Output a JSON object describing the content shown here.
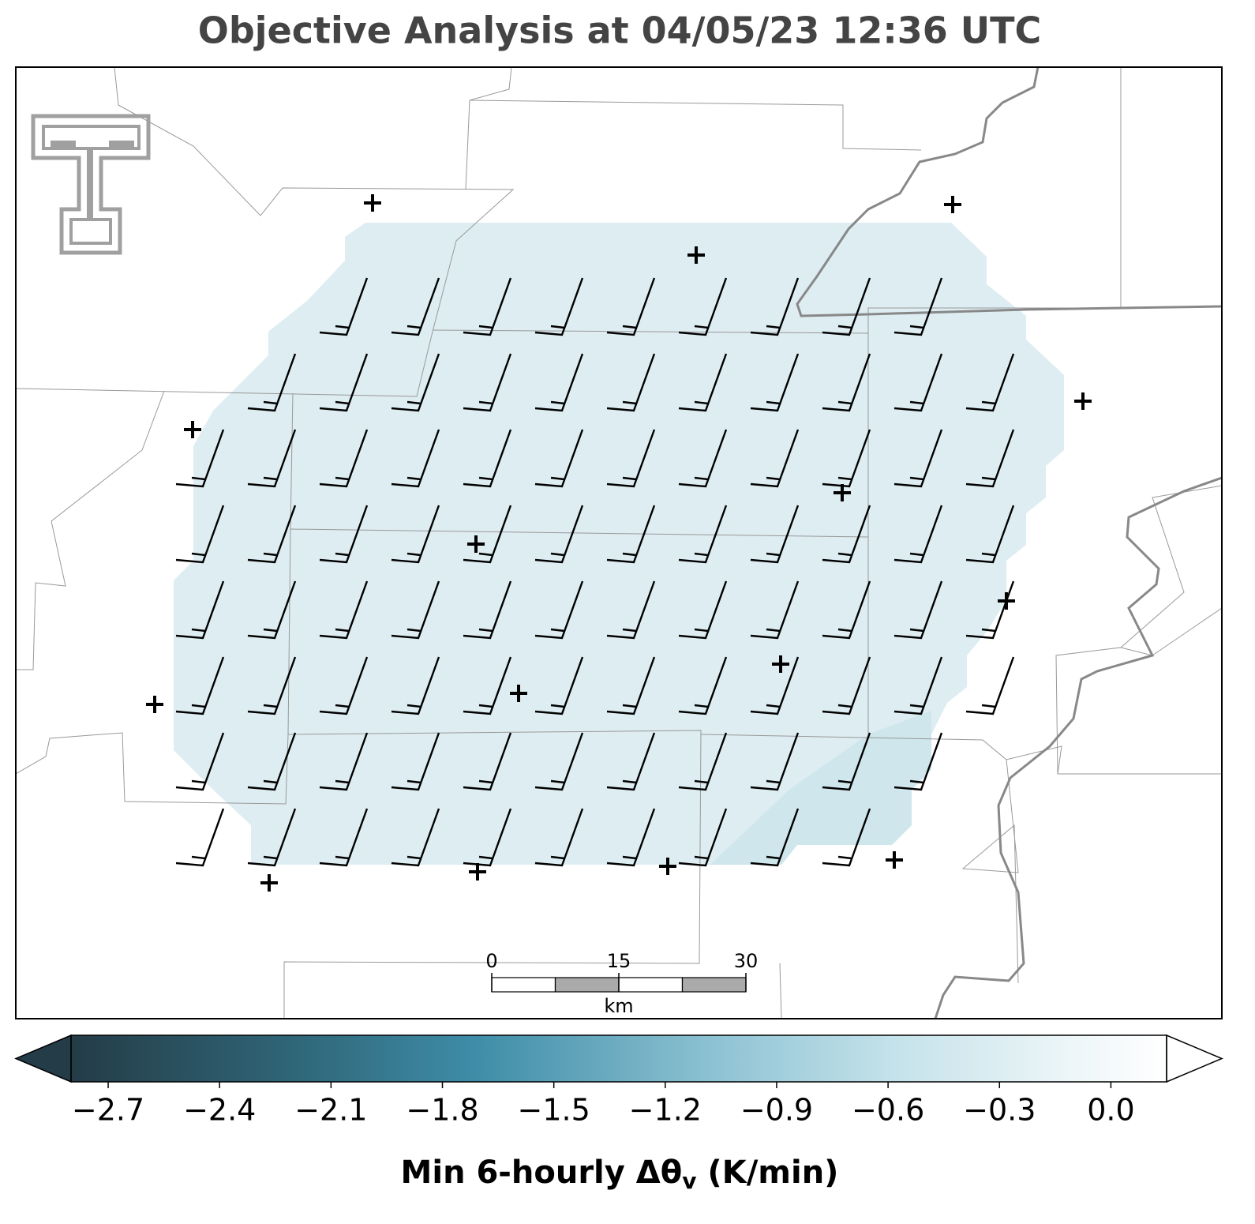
{
  "title": "Objective Analysis at 04/05/23 12:36 UTC",
  "colorbar": {
    "label": [
      "Min 6-hourly Δθ",
      "v",
      " (K/min)"
    ],
    "clim": [
      -2.8,
      0.15
    ],
    "extend": "both",
    "ticks": [
      {
        "value": -2.7,
        "label": "−2.7"
      },
      {
        "value": -2.4,
        "label": "−2.4"
      },
      {
        "value": -2.1,
        "label": "−2.1"
      },
      {
        "value": -1.8,
        "label": "−1.8"
      },
      {
        "value": -1.5,
        "label": "−1.5"
      },
      {
        "value": -1.2,
        "label": "−1.2"
      },
      {
        "value": -0.9,
        "label": "−0.9"
      },
      {
        "value": -0.6,
        "label": "−0.6"
      },
      {
        "value": -0.3,
        "label": "−0.3"
      },
      {
        "value": 0.0,
        "label": "0.0"
      }
    ]
  },
  "scale_bar": {
    "range": [
      0,
      30
    ],
    "ticks": [
      0,
      15,
      30
    ],
    "unit": "km"
  }
}
